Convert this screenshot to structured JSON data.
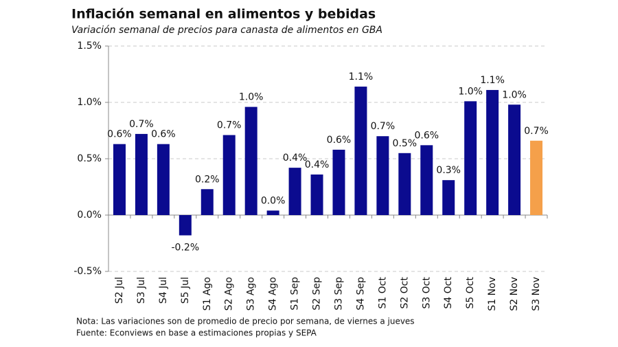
{
  "chart_data": {
    "type": "bar",
    "title": "Inflación semanal en alimentos y bebidas",
    "subtitle": "Variación semanal de precios para canasta de alimentos en GBA",
    "notes": [
      "Nota: Las variaciones son de promedio de precio por semana, de viernes a jueves",
      "Fuente: Econviews en base a estimaciones propias  y SEPA"
    ],
    "categories": [
      "S2 Jul",
      "S3 Jul",
      "S4 Jul",
      "S5 Jul",
      "S1 Ago",
      "S2 Ago",
      "S3 Ago",
      "S4 Ago",
      "S1 Sep",
      "S2 Sep",
      "S3 Sep",
      "S4 Sep",
      "S1 Oct",
      "S2 Oct",
      "S3 Oct",
      "S4 Oct",
      "S5 Oct",
      "S1 Nov",
      "S2 Nov",
      "S3 Nov"
    ],
    "values": [
      0.63,
      0.72,
      0.63,
      -0.18,
      0.23,
      0.71,
      0.96,
      0.04,
      0.42,
      0.36,
      0.58,
      1.14,
      0.7,
      0.55,
      0.62,
      0.31,
      1.01,
      1.11,
      0.98,
      0.66
    ],
    "value_labels": [
      "0.6%",
      "0.7%",
      "0.6%",
      "-0.2%",
      "0.2%",
      "0.7%",
      "1.0%",
      "0.0%",
      "0.4%",
      "0.4%",
      "0.6%",
      "1.1%",
      "0.7%",
      "0.5%",
      "0.6%",
      "0.3%",
      "1.0%",
      "1.1%",
      "1.0%",
      "0.7%"
    ],
    "colors": [
      "#0b0b8f",
      "#0b0b8f",
      "#0b0b8f",
      "#0b0b8f",
      "#0b0b8f",
      "#0b0b8f",
      "#0b0b8f",
      "#0b0b8f",
      "#0b0b8f",
      "#0b0b8f",
      "#0b0b8f",
      "#0b0b8f",
      "#0b0b8f",
      "#0b0b8f",
      "#0b0b8f",
      "#0b0b8f",
      "#0b0b8f",
      "#0b0b8f",
      "#0b0b8f",
      "#f5a04a"
    ],
    "ylim": [
      -0.5,
      1.5
    ],
    "yticks": [
      {
        "value": -0.5,
        "label": "-0.5%"
      },
      {
        "value": 0,
        "label": "0.0%"
      },
      {
        "value": 0.5,
        "label": "0.5%"
      },
      {
        "value": 1,
        "label": "1.0%"
      },
      {
        "value": 1.5,
        "label": "1.5%"
      }
    ],
    "grid": true
  }
}
